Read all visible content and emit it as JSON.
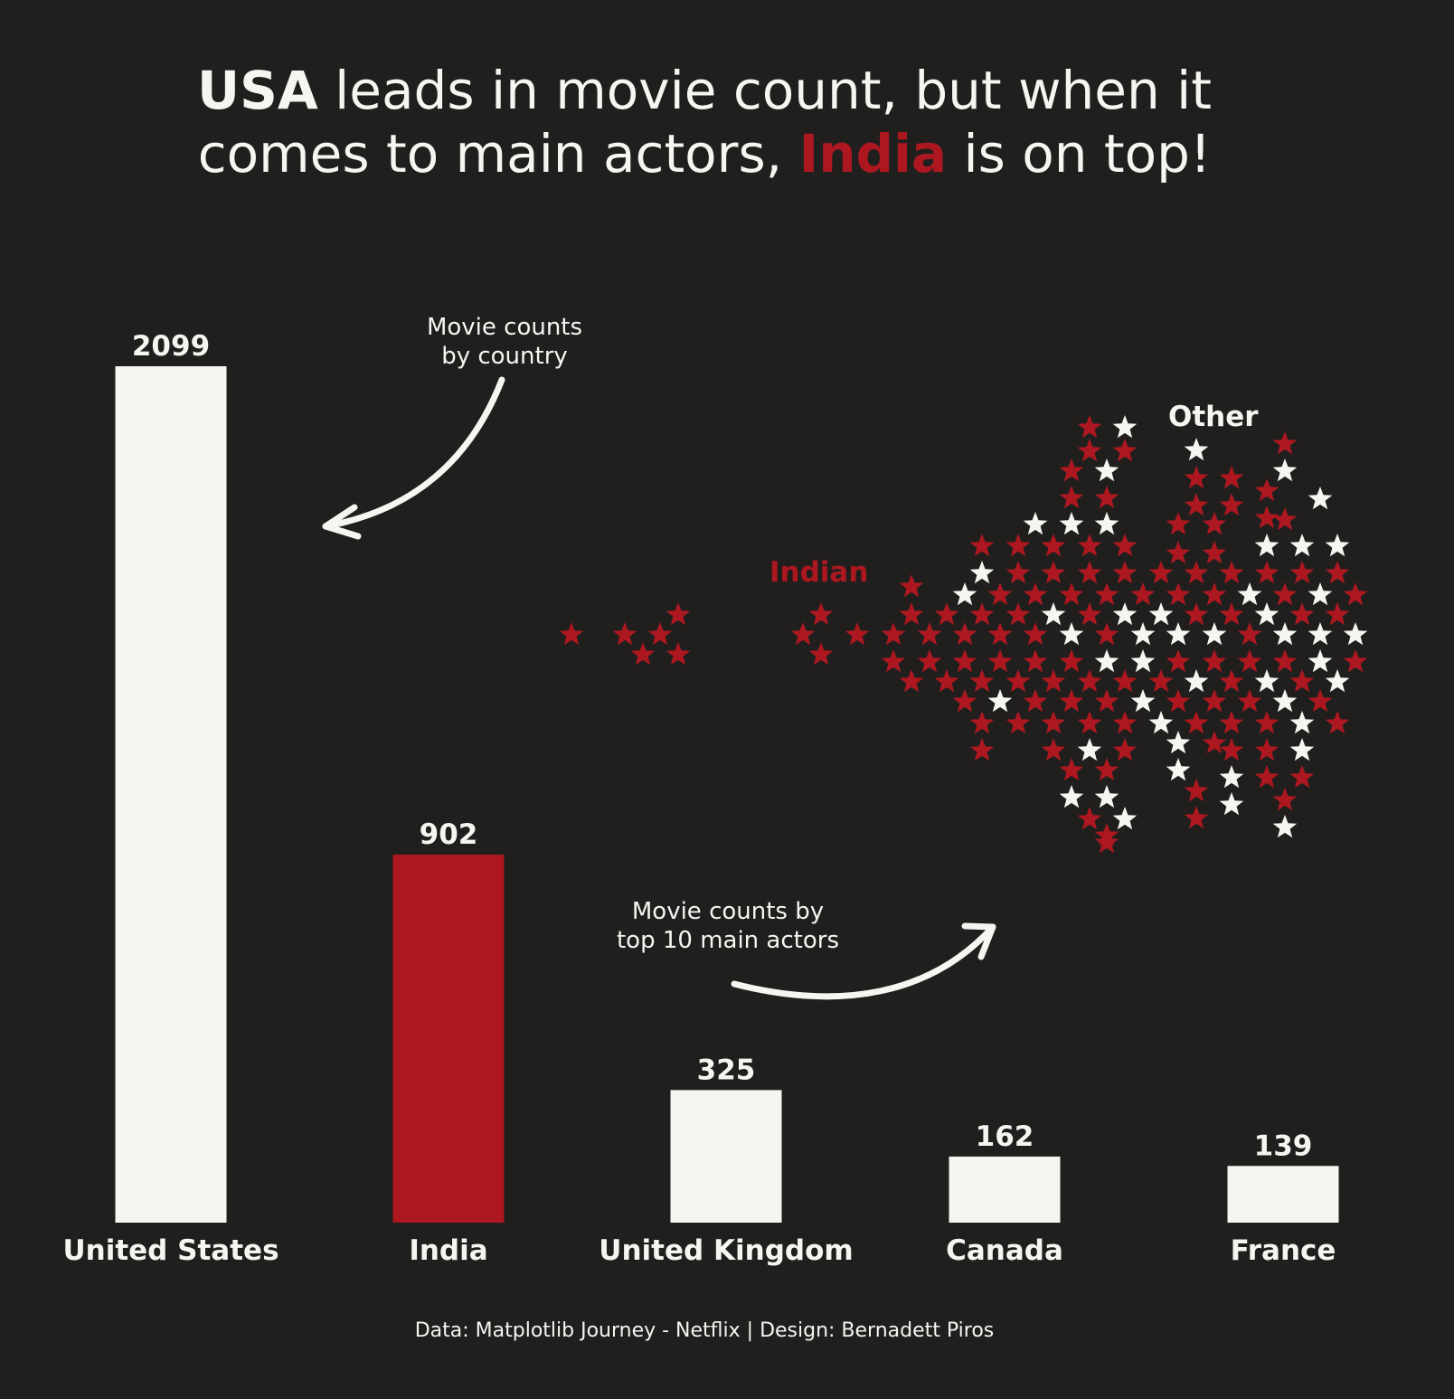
{
  "title": {
    "line1": {
      "bold": "USA",
      "rest": " leads in movie count, but when it"
    },
    "line2": {
      "pre": "comes to main actors, ",
      "highlight": "India",
      "post": " is on top!"
    }
  },
  "colors": {
    "background": "#201f1e",
    "neutral": "#f5f5f2",
    "accent": "#ad1820"
  },
  "annotations": {
    "country_counts": "Movie counts\nby country",
    "actor_counts": "Movie counts by\ntop 10 main actors",
    "indian_label": "Indian",
    "other_label": "Other"
  },
  "source": "Data: Matplotlib Journey - Netflix | Design: Bernadett Piros",
  "chart_data": [
    {
      "type": "bar",
      "categories": [
        "United States",
        "India",
        "United Kingdom",
        "Canada",
        "France"
      ],
      "values": [
        2099,
        902,
        325,
        162,
        139
      ],
      "highlight": "India",
      "ylim": [
        0,
        2099
      ],
      "grid": false,
      "xlabel": "",
      "ylabel": ""
    },
    {
      "type": "scatter",
      "marker": "star",
      "series": [
        {
          "name": "Indian",
          "color": "accent"
        },
        {
          "name": "Other",
          "color": "neutral"
        }
      ]
    }
  ]
}
